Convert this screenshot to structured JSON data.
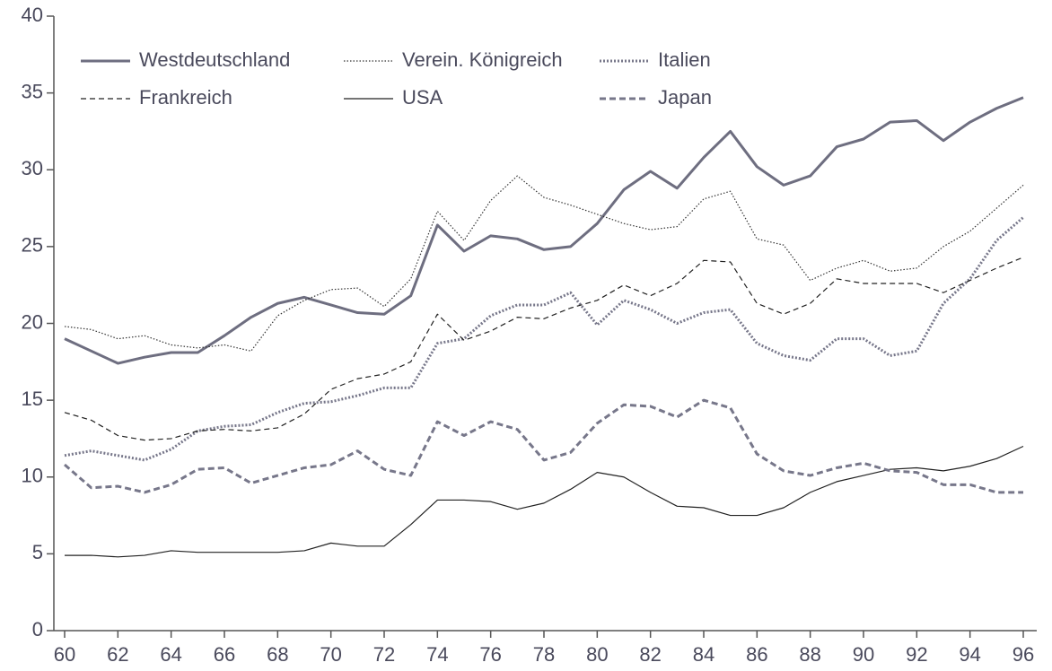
{
  "chart_data": {
    "type": "line",
    "x": [
      60,
      61,
      62,
      63,
      64,
      65,
      66,
      67,
      68,
      69,
      70,
      71,
      72,
      73,
      74,
      75,
      76,
      77,
      78,
      79,
      80,
      81,
      82,
      83,
      84,
      85,
      86,
      87,
      88,
      89,
      90,
      91,
      92,
      93,
      94,
      95,
      96
    ],
    "xlim": [
      60,
      96
    ],
    "xticks": [
      60,
      62,
      64,
      66,
      68,
      70,
      72,
      74,
      76,
      78,
      80,
      82,
      84,
      86,
      88,
      90,
      92,
      94,
      96
    ],
    "ylim": [
      0,
      40
    ],
    "yticks": [
      0,
      5,
      10,
      15,
      20,
      25,
      30,
      35,
      40
    ],
    "legend": "top-left",
    "series": [
      {
        "name": "Westdeutschland",
        "color": "#6e6e80",
        "line_style": "solid",
        "line_weight": "thick",
        "values": [
          19.0,
          18.2,
          17.4,
          17.8,
          18.1,
          18.1,
          19.2,
          20.4,
          21.3,
          21.7,
          21.2,
          20.7,
          20.6,
          21.8,
          26.4,
          24.7,
          25.7,
          25.5,
          24.8,
          25.0,
          26.5,
          28.7,
          29.9,
          28.8,
          30.8,
          32.5,
          30.2,
          29.0,
          29.6,
          31.5,
          32.0,
          33.1,
          33.2,
          31.9,
          33.1,
          34.0,
          34.7
        ]
      },
      {
        "name": "Verein. Königreich",
        "color": "#333333",
        "line_style": "dotted",
        "line_weight": "thin",
        "values": [
          19.8,
          19.6,
          19.0,
          19.2,
          18.6,
          18.4,
          18.6,
          18.2,
          20.5,
          21.5,
          22.2,
          22.3,
          21.1,
          22.9,
          27.3,
          25.4,
          28.0,
          29.6,
          28.2,
          27.7,
          27.1,
          26.5,
          26.1,
          26.3,
          28.1,
          28.6,
          25.5,
          25.1,
          22.8,
          23.6,
          24.1,
          23.4,
          23.6,
          25.0,
          26.0,
          27.5,
          29.0
        ]
      },
      {
        "name": "Italien",
        "color": "#77778a",
        "line_style": "dotted",
        "line_weight": "thick",
        "values": [
          11.4,
          11.7,
          11.4,
          11.1,
          11.8,
          13.0,
          13.3,
          13.4,
          14.2,
          14.8,
          14.9,
          15.3,
          15.8,
          15.8,
          18.7,
          19.0,
          20.5,
          21.2,
          21.2,
          22.0,
          19.9,
          21.5,
          20.9,
          20.0,
          20.7,
          20.9,
          18.7,
          17.9,
          17.6,
          19.0,
          19.0,
          17.9,
          18.2,
          21.3,
          22.9,
          25.4,
          26.9
        ]
      },
      {
        "name": "Frankreich",
        "color": "#222222",
        "line_style": "dashed",
        "line_weight": "thin",
        "values": [
          14.2,
          13.7,
          12.7,
          12.4,
          12.5,
          13.0,
          13.1,
          13.0,
          13.2,
          14.1,
          15.7,
          16.4,
          16.7,
          17.5,
          20.6,
          18.9,
          19.5,
          20.4,
          20.3,
          21.0,
          21.5,
          22.5,
          21.8,
          22.6,
          24.1,
          24.0,
          21.3,
          20.6,
          21.3,
          22.9,
          22.6,
          22.6,
          22.6,
          22.0,
          22.8,
          23.6,
          24.3
        ]
      },
      {
        "name": "USA",
        "color": "#222222",
        "line_style": "solid",
        "line_weight": "thin",
        "values": [
          4.9,
          4.9,
          4.8,
          4.9,
          5.2,
          5.1,
          5.1,
          5.1,
          5.1,
          5.2,
          5.7,
          5.5,
          5.5,
          6.9,
          8.5,
          8.5,
          8.4,
          7.9,
          8.3,
          9.2,
          10.3,
          10.0,
          9.0,
          8.1,
          8.0,
          7.5,
          7.5,
          8.0,
          9.0,
          9.7,
          10.1,
          10.5,
          10.6,
          10.4,
          10.7,
          11.2,
          12.0
        ]
      },
      {
        "name": "Japan",
        "color": "#77778a",
        "line_style": "dashed",
        "line_weight": "thick",
        "values": [
          10.8,
          9.3,
          9.4,
          9.0,
          9.5,
          10.5,
          10.6,
          9.6,
          10.1,
          10.6,
          10.8,
          11.7,
          10.5,
          10.1,
          13.6,
          12.7,
          13.6,
          13.1,
          11.1,
          11.6,
          13.5,
          14.7,
          14.6,
          13.9,
          15.0,
          14.5,
          11.5,
          10.4,
          10.1,
          10.6,
          10.9,
          10.4,
          10.3,
          9.5,
          9.5,
          9.0,
          9.0
        ]
      }
    ]
  }
}
